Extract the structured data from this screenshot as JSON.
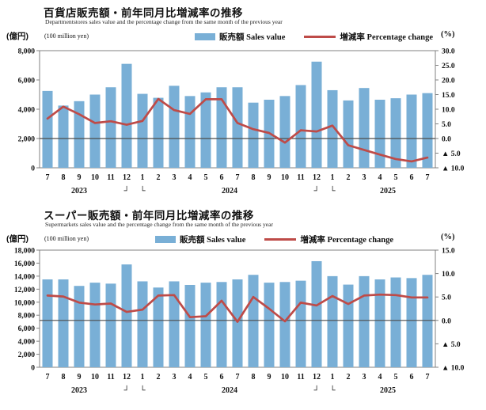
{
  "charts": [
    {
      "title": "百貨店販売額・前年同月比増減率の推移",
      "subtitle": "Departmentstores sales value and the percentage change from the same month of the previous year",
      "left_unit_jp": "(億円)",
      "left_unit_en": "(100 million yen)",
      "right_unit": "(%)",
      "legend": {
        "bar_label": "販売額 Sales value",
        "line_label": "増減率 Percentage change"
      },
      "colors": {
        "bar": "#79AFD6",
        "line": "#BE4B48",
        "zero_line": "#4d4d4d",
        "frame": "#808080"
      },
      "chart_data": {
        "type": "bar+line combo (bars on left axis, line on right axis)",
        "categories": [
          "7",
          "8",
          "9",
          "10",
          "11",
          "12",
          "1",
          "2",
          "3",
          "4",
          "5",
          "6",
          "7",
          "8",
          "9",
          "10",
          "11",
          "12",
          "1",
          "2",
          "3",
          "4",
          "5",
          "6",
          "7"
        ],
        "year_row": [
          {
            "text": "2023",
            "col": 2
          },
          {
            "text": "┘",
            "col": 5
          },
          {
            "text": "└",
            "col": 6
          },
          {
            "text": "2024",
            "col": 11.5
          },
          {
            "text": "┘",
            "col": 17
          },
          {
            "text": "└",
            "col": 18
          },
          {
            "text": "2025",
            "col": 21.5
          }
        ],
        "series": [
          {
            "name": "販売額 Sales value",
            "type": "bar",
            "axis": "left",
            "values": [
              5250,
              4250,
              4550,
              5000,
              5500,
              7100,
              5050,
              4780,
              5600,
              4900,
              5150,
              5500,
              5500,
              4450,
              4650,
              4900,
              5650,
              7250,
              5300,
              4600,
              5450,
              4650,
              4750,
              5000,
              5100
            ]
          },
          {
            "name": "増減率 Percentage change",
            "type": "line",
            "axis": "right",
            "values": [
              6.8,
              10.9,
              8.3,
              5.3,
              5.9,
              4.7,
              6.0,
              13.5,
              9.7,
              8.4,
              13.4,
              13.4,
              5.3,
              3.2,
              1.9,
              -1.4,
              2.8,
              2.4,
              4.4,
              -2.3,
              -3.9,
              -5.5,
              -7.0,
              -7.8,
              -6.5
            ]
          }
        ],
        "left_axis": {
          "min": 0,
          "max": 8000,
          "step": 2000
        },
        "right_axis": {
          "min": -10,
          "max": 30,
          "step": 5,
          "negative_format": "▲ prefix"
        },
        "grid": "none (only 0% reference line)",
        "legend_position": "top"
      }
    },
    {
      "title": "スーパー販売額・前年同月比増減率の推移",
      "subtitle": "Supermarkets sales value and the percentage change from the same month of the previous year",
      "left_unit_jp": "(億円)",
      "left_unit_en": "(100 million yen)",
      "right_unit": "(%)",
      "legend": {
        "bar_label": "販売額 Sales value",
        "line_label": "増減率 Percentage change"
      },
      "colors": {
        "bar": "#79AFD6",
        "line": "#BE4B48",
        "zero_line": "#4d4d4d",
        "frame": "#808080"
      },
      "chart_data": {
        "type": "bar+line combo (bars on left axis, line on right axis)",
        "categories": [
          "7",
          "8",
          "9",
          "10",
          "11",
          "12",
          "1",
          "2",
          "3",
          "4",
          "5",
          "6",
          "7",
          "8",
          "9",
          "10",
          "11",
          "12",
          "1",
          "2",
          "3",
          "4",
          "5",
          "6",
          "7"
        ],
        "year_row": [
          {
            "text": "2023",
            "col": 2
          },
          {
            "text": "┘",
            "col": 5
          },
          {
            "text": "└",
            "col": 6
          },
          {
            "text": "2024",
            "col": 11.5
          },
          {
            "text": "┘",
            "col": 17
          },
          {
            "text": "└",
            "col": 18
          },
          {
            "text": "2025",
            "col": 21.5
          }
        ],
        "series": [
          {
            "name": "販売額 Sales value",
            "type": "bar",
            "axis": "left",
            "values": [
              13500,
              13500,
              12500,
              13000,
              12850,
              15800,
              13200,
              12250,
              13200,
              12650,
              13000,
              13100,
              13500,
              14200,
              13000,
              13100,
              13300,
              16300,
              14000,
              12700,
              14000,
              13500,
              13800,
              13700,
              14200
            ]
          },
          {
            "name": "増減率 Percentage change",
            "type": "line",
            "axis": "right",
            "values": [
              5.3,
              5.1,
              3.8,
              3.4,
              3.6,
              1.8,
              2.3,
              5.3,
              5.4,
              0.7,
              0.9,
              4.2,
              -0.3,
              5.0,
              2.5,
              -0.2,
              3.8,
              3.2,
              5.2,
              3.5,
              5.3,
              5.5,
              5.4,
              4.9,
              4.9
            ]
          }
        ],
        "left_axis": {
          "min": 0,
          "max": 18000,
          "step": 2000
        },
        "right_axis": {
          "min": -10,
          "max": 15,
          "step": 5,
          "negative_format": "▲ prefix"
        },
        "grid": "none (only 0% reference line)",
        "legend_position": "top"
      }
    }
  ]
}
